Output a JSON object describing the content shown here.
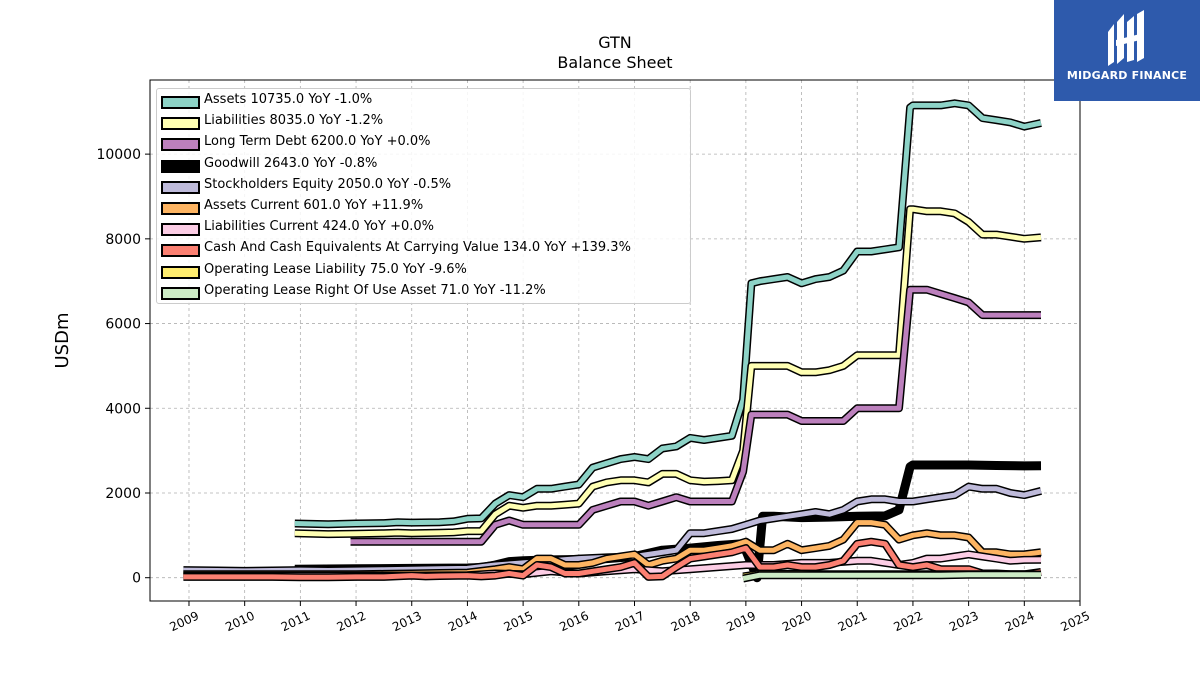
{
  "brand": {
    "name": "MIDGARD FINANCE",
    "color": "#2e5aac"
  },
  "chart_data": {
    "type": "line",
    "title": "GTN",
    "subtitle": "Balance  Sheet",
    "xlabel": "",
    "ylabel": "USDm",
    "xlim": [
      2008.3,
      2025.0
    ],
    "ylim": [
      -550,
      11750
    ],
    "x_ticks": [
      "2009",
      "2010",
      "2011",
      "2012",
      "2013",
      "2014",
      "2015",
      "2016",
      "2017",
      "2018",
      "2019",
      "2020",
      "2021",
      "2022",
      "2023",
      "2024",
      "2025"
    ],
    "y_ticks": [
      0,
      2000,
      4000,
      6000,
      8000,
      10000
    ],
    "grid": true,
    "legend_position": "top-left",
    "series": [
      {
        "name": "Assets",
        "legend": "Assets  10735.0 YoY -1.0%",
        "color": "#8dd3c7",
        "x": [
          2010.9,
          2011.5,
          2012.0,
          2012.5,
          2012.75,
          2013.0,
          2013.5,
          2013.75,
          2014.0,
          2014.25,
          2014.5,
          2014.75,
          2015.0,
          2015.25,
          2015.5,
          2015.75,
          2016.0,
          2016.25,
          2016.5,
          2016.75,
          2017.0,
          2017.25,
          2017.5,
          2017.75,
          2018.0,
          2018.25,
          2018.5,
          2018.75,
          2018.95,
          2019.1,
          2019.25,
          2019.5,
          2019.75,
          2020.0,
          2020.25,
          2020.5,
          2020.75,
          2021.0,
          2021.25,
          2021.5,
          2021.75,
          2021.95,
          2022.0,
          2022.25,
          2022.5,
          2022.75,
          2023.0,
          2023.25,
          2023.5,
          2023.75,
          2024.0,
          2024.3
        ],
        "y": [
          1280,
          1260,
          1280,
          1290,
          1310,
          1300,
          1310,
          1330,
          1390,
          1400,
          1750,
          1950,
          1900,
          2100,
          2100,
          2150,
          2200,
          2600,
          2700,
          2800,
          2850,
          2800,
          3050,
          3100,
          3300,
          3250,
          3300,
          3350,
          4200,
          6950,
          7000,
          7050,
          7100,
          6950,
          7050,
          7100,
          7250,
          7700,
          7700,
          7750,
          7800,
          11100,
          11150,
          11150,
          11150,
          11200,
          11150,
          10850,
          10800,
          10750,
          10650,
          10735
        ]
      },
      {
        "name": "Liabilities",
        "legend": "Liabilities  8035.0 YoY -1.2%",
        "color": "#ffffb3",
        "x": [
          2010.9,
          2011.5,
          2012.0,
          2012.5,
          2012.75,
          2013.0,
          2013.5,
          2013.75,
          2014.0,
          2014.25,
          2014.5,
          2014.75,
          2015.0,
          2015.25,
          2015.5,
          2015.75,
          2016.0,
          2016.25,
          2016.5,
          2016.75,
          2017.0,
          2017.25,
          2017.5,
          2017.75,
          2018.0,
          2018.25,
          2018.5,
          2018.75,
          2018.95,
          2019.1,
          2019.25,
          2019.5,
          2019.75,
          2020.0,
          2020.25,
          2020.5,
          2020.75,
          2021.0,
          2021.25,
          2021.5,
          2021.75,
          2021.95,
          2022.0,
          2022.25,
          2022.5,
          2022.75,
          2023.0,
          2023.25,
          2023.5,
          2023.75,
          2024.0,
          2024.3
        ],
        "y": [
          1050,
          1030,
          1040,
          1050,
          1060,
          1050,
          1060,
          1070,
          1100,
          1100,
          1500,
          1700,
          1650,
          1700,
          1700,
          1720,
          1750,
          2150,
          2250,
          2300,
          2300,
          2250,
          2450,
          2450,
          2300,
          2270,
          2280,
          2300,
          3000,
          5000,
          5000,
          5000,
          5000,
          4850,
          4850,
          4900,
          5000,
          5250,
          5250,
          5250,
          5250,
          8700,
          8700,
          8650,
          8650,
          8600,
          8400,
          8100,
          8100,
          8050,
          8000,
          8035
        ]
      },
      {
        "name": "Long Term Debt",
        "legend": "Long Term Debt  6200.0 YoY +0.0%",
        "color": "#bebada",
        "x": [
          2011.9,
          2012.5,
          2013.0,
          2013.5,
          2014.0,
          2014.25,
          2014.5,
          2014.75,
          2015.0,
          2015.25,
          2015.5,
          2015.75,
          2016.0,
          2016.25,
          2016.5,
          2016.75,
          2017.0,
          2017.25,
          2017.5,
          2017.75,
          2018.0,
          2018.25,
          2018.5,
          2018.75,
          2018.95,
          2019.1,
          2019.25,
          2019.5,
          2019.75,
          2020.0,
          2020.25,
          2020.5,
          2020.75,
          2021.0,
          2021.25,
          2021.5,
          2021.75,
          2021.95,
          2022.0,
          2022.25,
          2022.5,
          2022.75,
          2023.0,
          2023.25,
          2023.5,
          2023.75,
          2024.0,
          2024.3
        ],
        "y": [
          850,
          850,
          850,
          850,
          850,
          850,
          1250,
          1350,
          1250,
          1250,
          1250,
          1250,
          1250,
          1600,
          1700,
          1800,
          1800,
          1700,
          1800,
          1900,
          1800,
          1800,
          1800,
          1800,
          2500,
          3850,
          3850,
          3850,
          3850,
          3700,
          3700,
          3700,
          3700,
          4000,
          4000,
          4000,
          4000,
          6800,
          6800,
          6800,
          6700,
          6600,
          6500,
          6200,
          6200,
          6200,
          6200,
          6200
        ]
      },
      {
        "name": "Goodwill",
        "legend": "Goodwill  2643.0 YoY -0.8%",
        "color": "#000000",
        "x": [
          2010.9,
          2012.0,
          2013.0,
          2014.0,
          2014.25,
          2014.5,
          2014.75,
          2015.0,
          2015.5,
          2016.0,
          2016.5,
          2017.0,
          2017.5,
          2018.0,
          2018.5,
          2018.95,
          2019.2,
          2019.3,
          2019.5,
          2020.0,
          2020.5,
          2021.0,
          2021.5,
          2021.75,
          2021.95,
          2022.0,
          2022.5,
          2023.0,
          2023.5,
          2024.0,
          2024.3
        ],
        "y": [
          200,
          210,
          220,
          230,
          240,
          300,
          380,
          400,
          420,
          430,
          450,
          500,
          650,
          700,
          760,
          800,
          0,
          1450,
          1450,
          1420,
          1430,
          1450,
          1460,
          1600,
          2620,
          2660,
          2660,
          2660,
          2650,
          2640,
          2643
        ]
      },
      {
        "name": "Stockholders Equity",
        "legend": "Stockholders Equity  2050.0 YoY -0.5%",
        "color": "#fb8072",
        "x": [
          2008.9,
          2009.5,
          2010.0,
          2010.5,
          2011.0,
          2011.5,
          2012.0,
          2012.5,
          2013.0,
          2013.5,
          2014.0,
          2014.5,
          2015.0,
          2015.5,
          2016.0,
          2016.5,
          2017.0,
          2017.5,
          2017.75,
          2018.0,
          2018.25,
          2018.5,
          2018.75,
          2019.0,
          2019.25,
          2019.5,
          2019.75,
          2020.0,
          2020.25,
          2020.5,
          2020.75,
          2021.0,
          2021.25,
          2021.5,
          2021.75,
          2022.0,
          2022.25,
          2022.5,
          2022.75,
          2023.0,
          2023.25,
          2023.5,
          2023.75,
          2024.0,
          2024.3
        ],
        "y": [
          180,
          170,
          160,
          170,
          180,
          170,
          180,
          190,
          200,
          210,
          220,
          300,
          350,
          400,
          450,
          480,
          500,
          600,
          650,
          1050,
          1050,
          1100,
          1150,
          1250,
          1350,
          1400,
          1450,
          1500,
          1550,
          1500,
          1600,
          1800,
          1850,
          1850,
          1800,
          1800,
          1850,
          1900,
          1950,
          2150,
          2100,
          2100,
          2000,
          1950,
          2050
        ]
      },
      {
        "name": "Assets Current",
        "legend": "Assets Current  601.0 YoY +11.9%",
        "color": "#80b1d3",
        "x": [
          2008.9,
          2009.5,
          2010.0,
          2010.5,
          2011.0,
          2011.5,
          2012.0,
          2012.5,
          2013.0,
          2013.5,
          2014.0,
          2014.5,
          2014.75,
          2015.0,
          2015.25,
          2015.5,
          2015.75,
          2016.0,
          2016.25,
          2016.5,
          2016.75,
          2017.0,
          2017.25,
          2017.5,
          2017.75,
          2018.0,
          2018.25,
          2018.5,
          2018.75,
          2019.0,
          2019.25,
          2019.5,
          2019.75,
          2020.0,
          2020.25,
          2020.5,
          2020.75,
          2021.0,
          2021.25,
          2021.5,
          2021.75,
          2022.0,
          2022.25,
          2022.5,
          2022.75,
          2023.0,
          2023.25,
          2023.5,
          2023.75,
          2024.0,
          2024.3
        ],
        "y": [
          80,
          80,
          80,
          80,
          80,
          80,
          80,
          90,
          100,
          110,
          120,
          200,
          250,
          200,
          450,
          450,
          300,
          300,
          350,
          450,
          500,
          550,
          300,
          400,
          450,
          650,
          650,
          700,
          750,
          850,
          650,
          650,
          800,
          650,
          700,
          750,
          900,
          1300,
          1300,
          1250,
          900,
          1000,
          1050,
          1000,
          1000,
          950,
          600,
          600,
          550,
          550,
          601
        ]
      },
      {
        "name": "Liabilities Current",
        "legend": "Liabilities Current  424.0 YoY +0.0%",
        "color": "#fdb462",
        "x": [
          2008.9,
          2010.0,
          2011.0,
          2012.0,
          2013.0,
          2014.0,
          2014.5,
          2015.0,
          2015.5,
          2016.0,
          2016.5,
          2017.0,
          2017.5,
          2018.0,
          2018.5,
          2019.0,
          2019.5,
          2020.0,
          2020.5,
          2021.0,
          2021.25,
          2021.5,
          2021.75,
          2022.0,
          2022.25,
          2022.5,
          2022.75,
          2023.0,
          2023.25,
          2023.5,
          2023.75,
          2024.0,
          2024.3
        ],
        "y": [
          50,
          50,
          50,
          50,
          50,
          60,
          100,
          80,
          150,
          100,
          150,
          200,
          150,
          200,
          250,
          300,
          300,
          350,
          350,
          400,
          400,
          350,
          300,
          350,
          450,
          450,
          500,
          550,
          500,
          450,
          400,
          420,
          424
        ]
      },
      {
        "name": "Cash And Cash Equivalents At Carrying Value",
        "legend": "Cash And Cash Equivalents At Carrying Value  134.0 YoY +139.3%",
        "color": "#b3de69",
        "x": [
          2008.9,
          2009.5,
          2010.0,
          2010.5,
          2011.0,
          2011.5,
          2012.0,
          2012.5,
          2013.0,
          2013.25,
          2013.5,
          2014.0,
          2014.25,
          2014.5,
          2014.75,
          2015.0,
          2015.25,
          2015.5,
          2015.75,
          2016.0,
          2016.25,
          2016.5,
          2016.75,
          2017.0,
          2017.25,
          2017.5,
          2017.75,
          2018.0,
          2018.25,
          2018.5,
          2018.75,
          2019.0,
          2019.25,
          2019.5,
          2019.75,
          2020.0,
          2020.25,
          2020.5,
          2020.75,
          2021.0,
          2021.25,
          2021.5,
          2021.75,
          2022.0,
          2022.25,
          2022.5,
          2022.75,
          2023.0,
          2023.25,
          2023.5,
          2023.75,
          2024.0,
          2024.3
        ],
        "y": [
          20,
          20,
          20,
          20,
          10,
          10,
          20,
          20,
          50,
          30,
          40,
          50,
          30,
          50,
          100,
          50,
          300,
          250,
          100,
          100,
          150,
          200,
          250,
          350,
          20,
          30,
          250,
          450,
          500,
          550,
          600,
          700,
          250,
          250,
          300,
          250,
          250,
          300,
          400,
          800,
          850,
          800,
          300,
          250,
          300,
          200,
          200,
          200,
          100,
          100,
          80,
          80,
          134
        ]
      },
      {
        "name": "Operating Lease Liability",
        "legend": "Operating Lease Liability  75.0 YoY -9.6%",
        "color": "#fccde5",
        "x": [
          2018.95,
          2019.25,
          2019.5,
          2020.0,
          2020.5,
          2021.0,
          2021.5,
          2022.0,
          2022.5,
          2023.0,
          2023.5,
          2024.0,
          2024.3
        ],
        "y": [
          30,
          90,
          90,
          90,
          80,
          80,
          80,
          80,
          80,
          80,
          80,
          80,
          75
        ]
      },
      {
        "name": "Operating Lease Right Of Use Asset",
        "legend": "Operating Lease Right Of Use Asset  71.0 YoY -11.2%",
        "color": "#d9d9d9",
        "x": [
          2018.95,
          2019.25,
          2019.5,
          2020.0,
          2020.5,
          2021.0,
          2021.5,
          2022.0,
          2022.5,
          2023.0,
          2023.5,
          2024.0,
          2024.3
        ],
        "y": [
          -20,
          60,
          60,
          60,
          60,
          60,
          60,
          60,
          60,
          70,
          70,
          70,
          71
        ]
      }
    ],
    "legend_fill": {
      "Assets": "#8dd3c7",
      "Liabilities": "#ffffb3",
      "Long Term Debt": "#bc80bd",
      "Goodwill": "#000000",
      "Stockholders Equity": "#bebada",
      "Assets Current": "#fdb462",
      "Liabilities Current": "#fccde5",
      "Cash And Cash Equivalents At Carrying Value": "#fb8072",
      "Operating Lease Liability": "#ffed6f",
      "Operating Lease Right Of Use Asset": "#ccebc5"
    }
  }
}
